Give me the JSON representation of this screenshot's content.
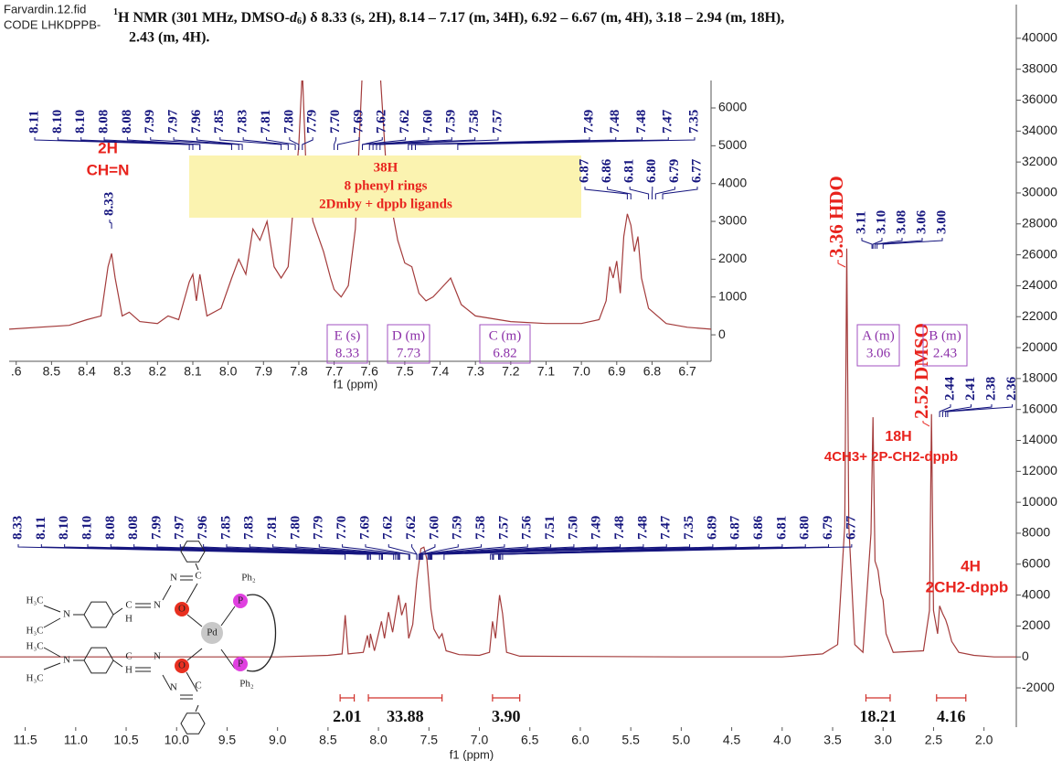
{
  "file_name": "Farvardin.12.fid",
  "code": "CODE LHKDPPB-",
  "nmr_header": {
    "mass": "1",
    "part1": "H NMR (301 MHz, DMSO-",
    "solvent": "d",
    "solvent_sub": "6",
    "part2": ") δ 8.33 (s, 2H), 8.14 – 7.17 (m, 34H), 6.92 – 6.67 (m, 4H), 3.18 – 2.94 (m, 18H),",
    "part3": "2.43 (m, 4H)."
  },
  "chart_data": [
    {
      "type": "line",
      "x_label": "f1 (ppm)",
      "xlim": [
        11.75,
        1.68
      ],
      "ylim": [
        -4540,
        42180
      ],
      "xticks": [
        11.5,
        {
          "value": 11,
          "label": "11.0"
        },
        10.5,
        {
          "value": 10,
          "label": "10.0"
        },
        9.5,
        {
          "value": 9,
          "label": "9.0"
        },
        8.5,
        {
          "value": 8,
          "label": "8.0"
        },
        7.5,
        {
          "value": 7,
          "label": "7.0"
        },
        6.5,
        {
          "value": 6,
          "label": "6.0"
        },
        5.5,
        {
          "value": 5,
          "label": "5.0"
        },
        4.5,
        {
          "value": 4,
          "label": "4.0"
        },
        3.5,
        {
          "value": 3,
          "label": "3.0"
        },
        2.5,
        {
          "value": 2,
          "label": "2.0"
        }
      ],
      "yticks": [
        -2000,
        0,
        2000,
        4000,
        6000,
        8000,
        10000,
        12000,
        14000,
        16000,
        18000,
        20000,
        22000,
        24000,
        26000,
        28000,
        30000,
        32000,
        34000,
        36000,
        38000,
        40000
      ],
      "x": [
        11.75,
        9.0,
        8.5,
        8.36,
        8.33,
        8.3,
        8.15,
        8.11,
        8.09,
        8.08,
        8.04,
        7.97,
        7.94,
        7.9,
        7.86,
        7.8,
        7.77,
        7.73,
        7.7,
        7.66,
        7.62,
        7.58,
        7.55,
        7.52,
        7.48,
        7.45,
        7.4,
        7.37,
        7.33,
        7.2,
        7.0,
        6.9,
        6.87,
        6.84,
        6.8,
        6.77,
        6.73,
        6.6,
        5.0,
        4.0,
        3.6,
        3.45,
        3.38,
        3.36,
        3.34,
        3.28,
        3.2,
        3.12,
        3.1,
        3.08,
        3.05,
        3.02,
        3.0,
        2.97,
        2.9,
        2.6,
        2.54,
        2.52,
        2.5,
        2.46,
        2.44,
        2.41,
        2.38,
        2.36,
        2.32,
        2.25,
        2.1,
        1.9,
        1.68
      ],
      "series": [
        {
          "color": "#a33b3b",
          "values": [
            0,
            0,
            100,
            200,
            2700,
            200,
            300,
            1400,
            600,
            1500,
            400,
            2300,
            1200,
            2900,
            1600,
            4000,
            2700,
            3500,
            1200,
            2100,
            5000,
            7000,
            7100,
            6300,
            3100,
            1800,
            1200,
            1500,
            400,
            150,
            100,
            300,
            2300,
            1200,
            4000,
            2800,
            300,
            50,
            0,
            0,
            200,
            800,
            8500,
            26400,
            8500,
            800,
            300,
            8000,
            15500,
            6200,
            5600,
            4100,
            3700,
            1500,
            300,
            400,
            3000,
            15700,
            3000,
            1500,
            3300,
            2800,
            2400,
            2000,
            1000,
            300,
            100,
            0,
            0
          ]
        }
      ],
      "peak_label_color": "#16167f",
      "peak_labels": [
        [
          "8.33",
          "8.11",
          "8.10",
          "8.10",
          "8.08",
          "8.08",
          "7.99",
          "7.97",
          "7.96",
          "7.85",
          "7.83",
          "7.81",
          "7.80",
          "7.79",
          "7.70",
          "7.69",
          "7.62",
          "7.62",
          "7.60",
          "7.59",
          "7.58",
          "7.57",
          "7.56",
          "7.51",
          "7.50",
          "7.49",
          "7.48",
          "7.48",
          "7.47",
          "7.35",
          "6.89",
          "6.87",
          "6.86",
          "6.81",
          "6.80",
          "6.79",
          "6.77"
        ],
        [
          "3.11",
          "3.10",
          "3.08",
          "3.06",
          "3.00"
        ],
        [
          "2.44",
          "2.41",
          "2.38",
          "2.36"
        ]
      ],
      "annotation_color": "#e8231d",
      "annotations": [
        "3.36 HDO",
        "2.52 DMSO",
        "18H",
        "4CH3+ 2P-CH2-dppb",
        "4H",
        "2CH2-dppb"
      ],
      "multiplets": [
        {
          "name": "A (m)",
          "shift": 3.06
        },
        {
          "name": "B (m)",
          "shift": 2.43
        }
      ],
      "integrals": {
        "ranges": [
          [
            8.38,
            8.24
          ],
          [
            8.1,
            7.37
          ],
          [
            6.87,
            6.6
          ],
          [
            3.17,
            2.93
          ],
          [
            2.47,
            2.18
          ]
        ],
        "values": [
          2.01,
          33.88,
          3.9,
          18.21,
          4.16
        ],
        "value_labels": [
          "2.01",
          "33.88",
          "3.90",
          "18.21",
          "4.16"
        ]
      }
    },
    {
      "type": "line",
      "x_label": "f1 (ppm)",
      "xlim": [
        8.62,
        6.633
      ],
      "ylim": [
        -700,
        6726
      ],
      "xticks": [
        {
          "value": 8.6,
          "label": ".6"
        },
        8.5,
        8.4,
        8.3,
        8.2,
        8.1,
        {
          "value": 8,
          "label": "8.0"
        },
        7.9,
        7.8,
        7.7,
        7.6,
        7.5,
        7.4,
        7.3,
        7.2,
        7.1,
        {
          "value": 7,
          "label": "7.0"
        },
        6.9,
        6.8,
        6.7
      ],
      "yticks": [
        0,
        1000,
        2000,
        3000,
        4000,
        5000,
        6000
      ],
      "x": [
        8.62,
        8.45,
        8.4,
        8.36,
        8.34,
        8.33,
        8.32,
        8.3,
        8.28,
        8.25,
        8.2,
        8.17,
        8.14,
        8.11,
        8.1,
        8.09,
        8.08,
        8.06,
        8.02,
        7.99,
        7.97,
        7.95,
        7.93,
        7.91,
        7.89,
        7.87,
        7.85,
        7.83,
        7.81,
        7.8,
        7.79,
        7.78,
        7.76,
        7.73,
        7.71,
        7.7,
        7.68,
        7.66,
        7.64,
        7.62,
        7.61,
        7.59,
        7.57,
        7.55,
        7.52,
        7.5,
        7.48,
        7.46,
        7.44,
        7.42,
        7.4,
        7.37,
        7.34,
        7.3,
        7.2,
        7.1,
        7.0,
        6.95,
        6.93,
        6.92,
        6.91,
        6.9,
        6.89,
        6.88,
        6.87,
        6.86,
        6.85,
        6.84,
        6.83,
        6.81,
        6.76,
        6.7,
        6.633
      ],
      "series": [
        {
          "color": "#a33b3b",
          "values": [
            150,
            250,
            400,
            500,
            1800,
            2150,
            1500,
            500,
            600,
            350,
            300,
            500,
            400,
            1400,
            1600,
            900,
            1600,
            500,
            700,
            1500,
            2000,
            1600,
            2800,
            2500,
            3000,
            1800,
            1500,
            1800,
            4000,
            5000,
            7000,
            4500,
            3000,
            2200,
            1500,
            1200,
            1000,
            1300,
            2800,
            7000,
            7000,
            7000,
            7000,
            4000,
            2500,
            1900,
            1800,
            1100,
            900,
            1000,
            1200,
            1500,
            800,
            500,
            350,
            300,
            300,
            400,
            900,
            1800,
            1500,
            1950,
            1100,
            2600,
            3200,
            2900,
            2200,
            2600,
            1500,
            700,
            300,
            200,
            150
          ]
        }
      ],
      "peak_label_color": "#16167f",
      "peak_labels": [
        [
          "8.11",
          "8.10",
          "8.10",
          "8.08",
          "8.08",
          "7.99",
          "7.97",
          "7.96",
          "7.85",
          "7.83",
          "7.81",
          "7.80",
          "7.79",
          "7.70",
          "7.69",
          "7.62",
          "7.62",
          "7.60",
          "7.59",
          "7.58",
          "7.57"
        ],
        [
          "7.49",
          "7.48",
          "7.48",
          "7.47",
          "7.35"
        ],
        [
          "8.33"
        ],
        [
          "6.87",
          "6.86",
          "6.81",
          "6.80",
          "6.79",
          "6.77"
        ]
      ],
      "annotation_color": "#e8231d",
      "annotations": [
        "2H",
        "CH=N",
        "38H",
        "8 phenyl rings",
        "2Dmby + dppb ligands"
      ],
      "multiplets": [
        {
          "name": "E (s)",
          "shift": 8.33
        },
        {
          "name": "D (m)",
          "shift": 7.73
        },
        {
          "name": "C (m)",
          "shift": 6.82
        }
      ]
    }
  ],
  "structure": {
    "atoms": [
      "H₃C",
      "N",
      "H₃C",
      "C",
      "H",
      "N",
      "N",
      "C",
      "O",
      "Pd",
      "P",
      "Ph₂",
      "H₃C",
      "N",
      "H₃C",
      "C",
      "H",
      "N",
      "N",
      "C",
      "O",
      "P",
      "Ph₂"
    ]
  }
}
